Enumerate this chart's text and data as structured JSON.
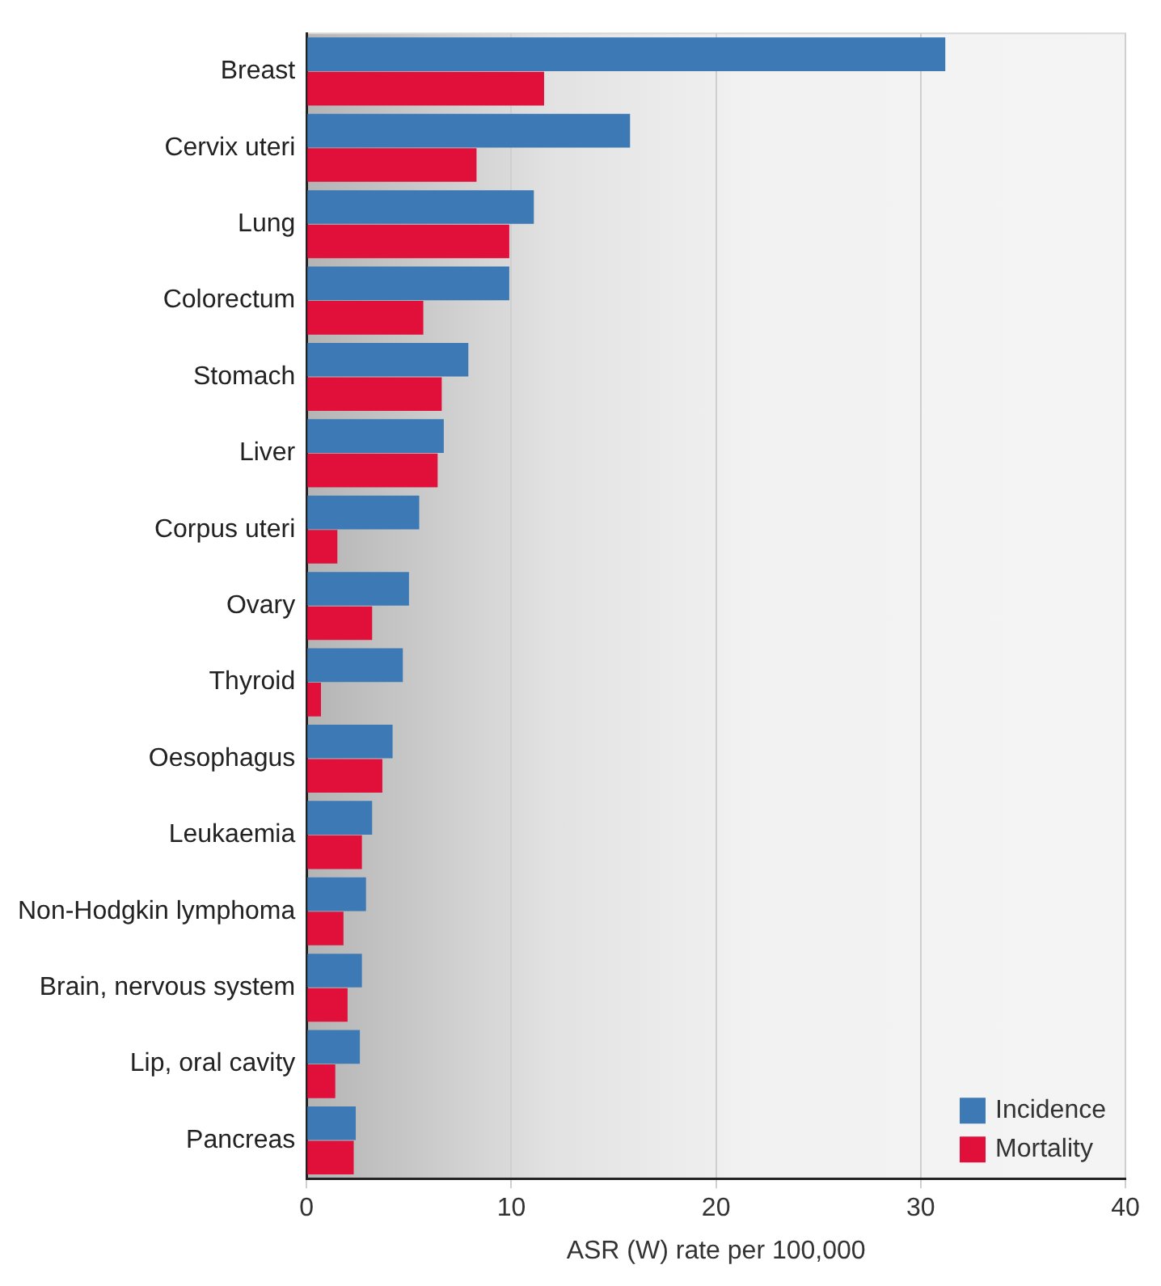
{
  "chart_data": {
    "type": "bar",
    "orientation": "horizontal",
    "xlabel": "ASR (W) rate per 100,000",
    "categories": [
      "Breast",
      "Cervix uteri",
      "Lung",
      "Colorectum",
      "Stomach",
      "Liver",
      "Corpus uteri",
      "Ovary",
      "Thyroid",
      "Oesophagus",
      "Leukaemia",
      "Non-Hodgkin lymphoma",
      "Brain, nervous system",
      "Lip, oral cavity",
      "Pancreas"
    ],
    "series": [
      {
        "name": "Incidence",
        "color": "#3d7ab5",
        "values": [
          31.2,
          15.8,
          11.1,
          9.9,
          7.9,
          6.7,
          5.5,
          5.0,
          4.7,
          4.2,
          3.2,
          2.9,
          2.7,
          2.6,
          2.4
        ]
      },
      {
        "name": "Mortality",
        "color": "#e0103a",
        "values": [
          11.6,
          8.3,
          9.9,
          5.7,
          6.6,
          6.4,
          1.5,
          3.2,
          0.7,
          3.7,
          2.7,
          1.8,
          2.0,
          1.4,
          2.3
        ]
      }
    ],
    "xlim": [
      0,
      40
    ],
    "xticks": [
      0,
      10,
      20,
      30,
      40
    ],
    "grid": "x",
    "legend": "bottom right"
  }
}
